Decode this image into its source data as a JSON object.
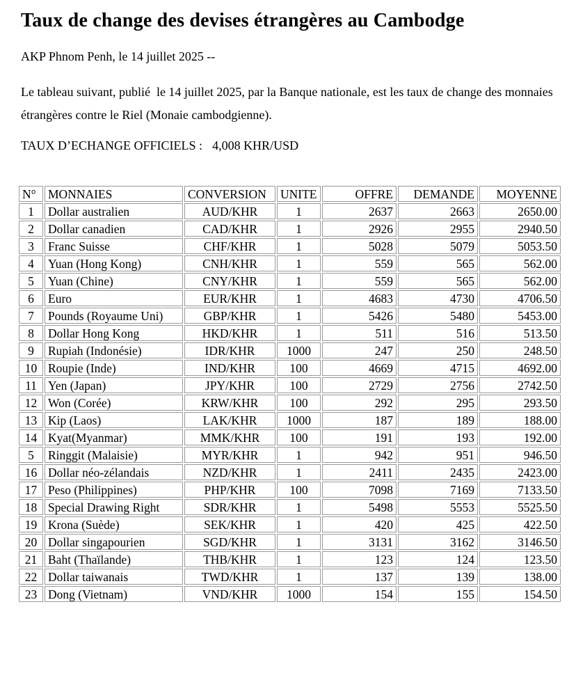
{
  "page": {
    "title": "Taux de change des devises étrangères au Cambodge",
    "dateline": "AKP Phnom Penh, le 14 juillet 2025 --",
    "intro": "Le tableau suivant, publié  le 14 juillet 2025, par la Banque nationale, est les taux de change des monnaies étrangères contre le Riel (Monaie cambodgienne).",
    "official_rate_label": "TAUX D’ECHANGE OFFICIELS :",
    "official_rate_value": "4,008 KHR/USD"
  },
  "table": {
    "headers": [
      "N°",
      "MONNAIES",
      "CONVERSION",
      "UNITE",
      "OFFRE",
      "DEMANDE",
      "MOYENNE"
    ],
    "rows": [
      [
        "1",
        "Dollar australien",
        "AUD/KHR",
        "1",
        "2637",
        "2663",
        "2650.00"
      ],
      [
        "2",
        "Dollar canadien",
        "CAD/KHR",
        "1",
        "2926",
        "2955",
        "2940.50"
      ],
      [
        "3",
        "Franc Suisse",
        "CHF/KHR",
        "1",
        "5028",
        "5079",
        "5053.50"
      ],
      [
        "4",
        "Yuan (Hong Kong)",
        "CNH/KHR",
        "1",
        "559",
        "565",
        "562.00"
      ],
      [
        "5",
        "Yuan (Chine)",
        "CNY/KHR",
        "1",
        "559",
        "565",
        "562.00"
      ],
      [
        "6",
        "Euro",
        "EUR/KHR",
        "1",
        "4683",
        "4730",
        "4706.50"
      ],
      [
        "7",
        "Pounds (Royaume Uni)",
        "GBP/KHR",
        "1",
        "5426",
        "5480",
        "5453.00"
      ],
      [
        "8",
        "Dollar Hong Kong",
        "HKD/KHR",
        "1",
        "511",
        "516",
        "513.50"
      ],
      [
        "9",
        "Rupiah (Indonésie)",
        "IDR/KHR",
        "1000",
        "247",
        "250",
        "248.50"
      ],
      [
        "10",
        "Roupie (Inde)",
        "IND/KHR",
        "100",
        "4669",
        "4715",
        "4692.00"
      ],
      [
        "11",
        "Yen (Japan)",
        "JPY/KHR",
        "100",
        "2729",
        "2756",
        "2742.50"
      ],
      [
        "12",
        "Won (Corée)",
        "KRW/KHR",
        "100",
        "292",
        "295",
        "293.50"
      ],
      [
        "13",
        "Kip (Laos)",
        "LAK/KHR",
        "1000",
        "187",
        "189",
        "188.00"
      ],
      [
        "14",
        "Kyat(Myanmar)",
        "MMK/KHR",
        "100",
        "191",
        "193",
        "192.00"
      ],
      [
        "5",
        "Ringgit (Malaisie)",
        "MYR/KHR",
        "1",
        "942",
        "951",
        "946.50"
      ],
      [
        "16",
        "Dollar néo-zélandais",
        "NZD/KHR",
        "1",
        "2411",
        "2435",
        "2423.00"
      ],
      [
        "17",
        "Peso (Philippines)",
        "PHP/KHR",
        "100",
        "7098",
        "7169",
        "7133.50"
      ],
      [
        "18",
        "Special Drawing Right",
        "SDR/KHR",
        "1",
        "5498",
        "5553",
        "5525.50"
      ],
      [
        "19",
        "Krona (Suède)",
        "SEK/KHR",
        "1",
        "420",
        "425",
        "422.50"
      ],
      [
        "20",
        "Dollar singapourien",
        "SGD/KHR",
        "1",
        "3131",
        "3162",
        "3146.50"
      ],
      [
        "21",
        "Baht (Thaïlande)",
        "THB/KHR",
        "1",
        "123",
        "124",
        "123.50"
      ],
      [
        "22",
        "Dollar taiwanais",
        "TWD/KHR",
        "1",
        "137",
        "139",
        "138.00"
      ],
      [
        "23",
        "Dong (Vietnam)",
        "VND/KHR",
        "1000",
        "154",
        "155",
        "154.50"
      ]
    ],
    "column_aligns": [
      "center",
      "left",
      "center",
      "center",
      "right",
      "right",
      "right"
    ],
    "header_aligns": [
      "left",
      "left",
      "left",
      "left",
      "right",
      "right",
      "right"
    ],
    "border_color": "#999999"
  }
}
